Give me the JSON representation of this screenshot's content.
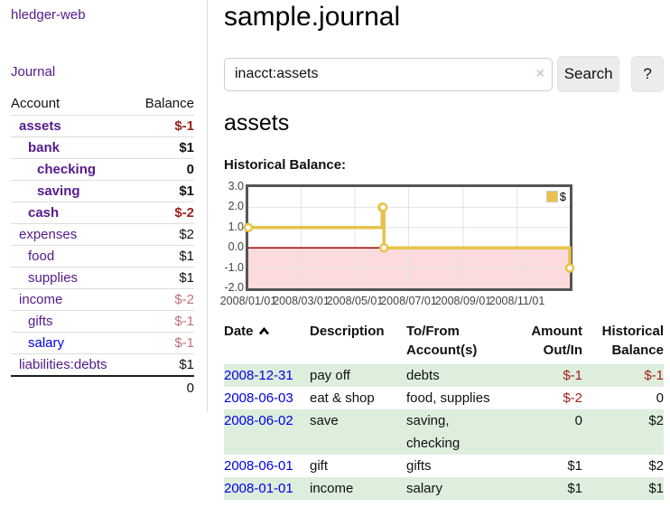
{
  "brand": "hledger-web",
  "nav": {
    "journal": "Journal"
  },
  "sidebar": {
    "col_account": "Account",
    "col_balance": "Balance",
    "accounts": [
      {
        "name": "assets",
        "balance": "$-1",
        "indent": 1,
        "bold": true,
        "name_color": "purple",
        "balance_color": "neg-strong"
      },
      {
        "name": "bank",
        "balance": "$1",
        "indent": 2,
        "bold": true,
        "name_color": "purple",
        "balance_color": "black"
      },
      {
        "name": "checking",
        "balance": "0",
        "indent": 3,
        "bold": true,
        "name_color": "purple",
        "balance_color": "black"
      },
      {
        "name": "saving",
        "balance": "$1",
        "indent": 3,
        "bold": true,
        "name_color": "purple",
        "balance_color": "black"
      },
      {
        "name": "cash",
        "balance": "$-2",
        "indent": 2,
        "bold": true,
        "name_color": "purple",
        "balance_color": "neg-strong"
      },
      {
        "name": "expenses",
        "balance": "$2",
        "indent": 1,
        "bold": false,
        "name_color": "purple",
        "balance_color": "black"
      },
      {
        "name": "food",
        "balance": "$1",
        "indent": 2,
        "bold": false,
        "name_color": "purple",
        "balance_color": "black"
      },
      {
        "name": "supplies",
        "balance": "$1",
        "indent": 2,
        "bold": false,
        "name_color": "purple",
        "balance_color": "black"
      },
      {
        "name": "income",
        "balance": "$-2",
        "indent": 1,
        "bold": false,
        "name_color": "purple",
        "balance_color": "neg-muted"
      },
      {
        "name": "gifts",
        "balance": "$-1",
        "indent": 2,
        "bold": false,
        "name_color": "purple",
        "balance_color": "neg-muted"
      },
      {
        "name": "salary",
        "balance": "$-1",
        "indent": 2,
        "bold": false,
        "name_color": "blue",
        "balance_color": "neg-muted"
      },
      {
        "name": "liabilities:debts",
        "balance": "$1",
        "indent": 1,
        "bold": false,
        "name_color": "purple",
        "balance_color": "black"
      }
    ],
    "total": "0"
  },
  "main": {
    "title": "sample.journal",
    "search": {
      "value": "inacct:assets",
      "clear_glyph": "×",
      "search_label": "Search",
      "help_label": "?"
    },
    "account_heading": "assets",
    "section_label": "Historical Balance:"
  },
  "chart_data": {
    "type": "line",
    "title": "Historical Balance:",
    "step": true,
    "series": [
      {
        "name": "$",
        "points": [
          {
            "x": "2008-01-01",
            "y": 1
          },
          {
            "x": "2008-06-01",
            "y": 2
          },
          {
            "x": "2008-06-02",
            "y": 2
          },
          {
            "x": "2008-06-03",
            "y": 0
          },
          {
            "x": "2008-12-31",
            "y": -1
          }
        ]
      }
    ],
    "xlim": [
      "2008-01-01",
      "2008-12-31"
    ],
    "ylim": [
      -2,
      3
    ],
    "yticks": [
      "3.0",
      "2.0",
      "1.0",
      "0.0",
      "-1.0",
      "-2.0"
    ],
    "xticks": [
      "2008/01/01",
      "2008/03/01",
      "2008/05/01",
      "2008/07/01",
      "2008/09/01",
      "2008/11/01"
    ],
    "grid": true,
    "legend_position": "top-right",
    "legend": [
      {
        "label": "$",
        "color": "#e8c24a"
      }
    ],
    "line_color": "#e8c24a",
    "negative_fill": "#fbdbdb",
    "zero_line_color": "#a00000"
  },
  "register": {
    "headers": {
      "date": "Date",
      "description": "Description",
      "tofrom": [
        "To/From",
        "Account(s)"
      ],
      "amount": [
        "Amount",
        "Out/In"
      ],
      "balance": [
        "Historical",
        "Balance"
      ]
    },
    "rows": [
      {
        "date": "2008-12-31",
        "description": "pay off",
        "accounts": [
          "debts"
        ],
        "amount": "$-1",
        "balance": "$-1",
        "amount_neg": true,
        "balance_neg": true
      },
      {
        "date": "2008-06-03",
        "description": "eat & shop",
        "accounts": [
          "food, supplies"
        ],
        "amount": "$-2",
        "balance": "0",
        "amount_neg": true,
        "balance_neg": false
      },
      {
        "date": "2008-06-02",
        "description": "save",
        "accounts": [
          "saving,",
          "checking"
        ],
        "amount": "0",
        "balance": "$2",
        "amount_neg": false,
        "balance_neg": false
      },
      {
        "date": "2008-06-01",
        "description": "gift",
        "accounts": [
          "gifts"
        ],
        "amount": "$1",
        "balance": "$2",
        "amount_neg": false,
        "balance_neg": false
      },
      {
        "date": "2008-01-01",
        "description": "income",
        "accounts": [
          "salary"
        ],
        "amount": "$1",
        "balance": "$1",
        "amount_neg": false,
        "balance_neg": false
      }
    ]
  }
}
